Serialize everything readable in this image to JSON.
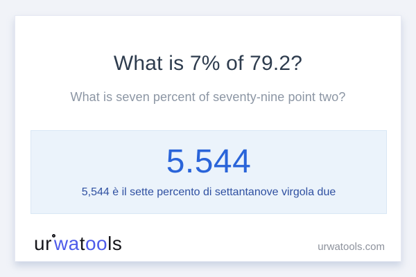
{
  "card": {
    "title": "What is 7% of 79.2?",
    "subtitle": "What is seven percent of seventy-nine point two?",
    "result": {
      "value": "5.544",
      "description": "5,544 è il sette percento di settantanove virgola due"
    },
    "footer": {
      "logo": {
        "part_ur": "ur",
        "part_wa": "wa",
        "part_t": "t",
        "part_oo": "oo",
        "part_ls": "ls"
      },
      "website": "urwatools.com"
    }
  },
  "colors": {
    "page_background": "#f1f3f8",
    "card_background": "#ffffff",
    "title_dark": "#2e3c4e",
    "subtitle_gray": "#8c96a4",
    "result_box_background": "#ebf3fb",
    "result_value_blue": "#2a64d9",
    "result_description_blue": "#2f50a1",
    "logo_blue": "#4e5bea",
    "logo_black": "#16161b"
  }
}
